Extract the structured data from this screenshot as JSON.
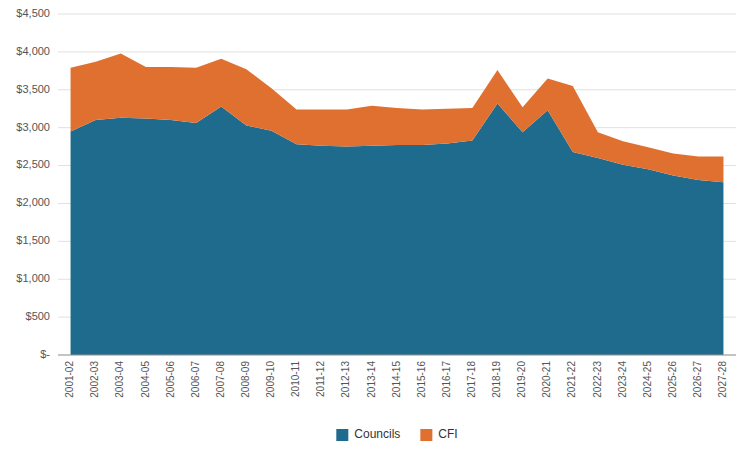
{
  "chart_data": {
    "type": "area",
    "stacked": true,
    "categories": [
      "2001-02",
      "2002-03",
      "2003-04",
      "2004-05",
      "2005-06",
      "2006-07",
      "2007-08",
      "2008-09",
      "2009-10",
      "2010-11",
      "2011-12",
      "2012-13",
      "2013-14",
      "2014-15",
      "2015-16",
      "2016-17",
      "2017-18",
      "2018-19",
      "2019-20",
      "2020-21",
      "2021-22",
      "2022-23",
      "2023-24",
      "2024-25",
      "2025-26",
      "2026-27",
      "2027-28"
    ],
    "series": [
      {
        "name": "Councils",
        "color": "#1f6b8e",
        "values": [
          2950,
          3100,
          3130,
          3120,
          3100,
          3060,
          3280,
          3030,
          2960,
          2780,
          2760,
          2750,
          2760,
          2770,
          2770,
          2790,
          2830,
          3320,
          2940,
          3230,
          2680,
          2600,
          2510,
          2450,
          2370,
          2310,
          2280
        ]
      },
      {
        "name": "CFI",
        "color": "#e07030",
        "values": [
          840,
          770,
          850,
          680,
          700,
          730,
          630,
          740,
          560,
          460,
          480,
          490,
          530,
          490,
          470,
          460,
          430,
          440,
          330,
          420,
          870,
          340,
          310,
          290,
          290,
          310,
          340
        ]
      }
    ],
    "ylim": [
      0,
      4500
    ],
    "yticks": [
      {
        "value": 0,
        "label": "$-"
      },
      {
        "value": 500,
        "label": "$500"
      },
      {
        "value": 1000,
        "label": "$1,000"
      },
      {
        "value": 1500,
        "label": "$1,500"
      },
      {
        "value": 2000,
        "label": "$2,000"
      },
      {
        "value": 2500,
        "label": "$2,500"
      },
      {
        "value": 3000,
        "label": "$3,000"
      },
      {
        "value": 3500,
        "label": "$3,500"
      },
      {
        "value": 4000,
        "label": "$4,000"
      },
      {
        "value": 4500,
        "label": "$4,500"
      }
    ],
    "grid": true,
    "legend": "bottom"
  }
}
